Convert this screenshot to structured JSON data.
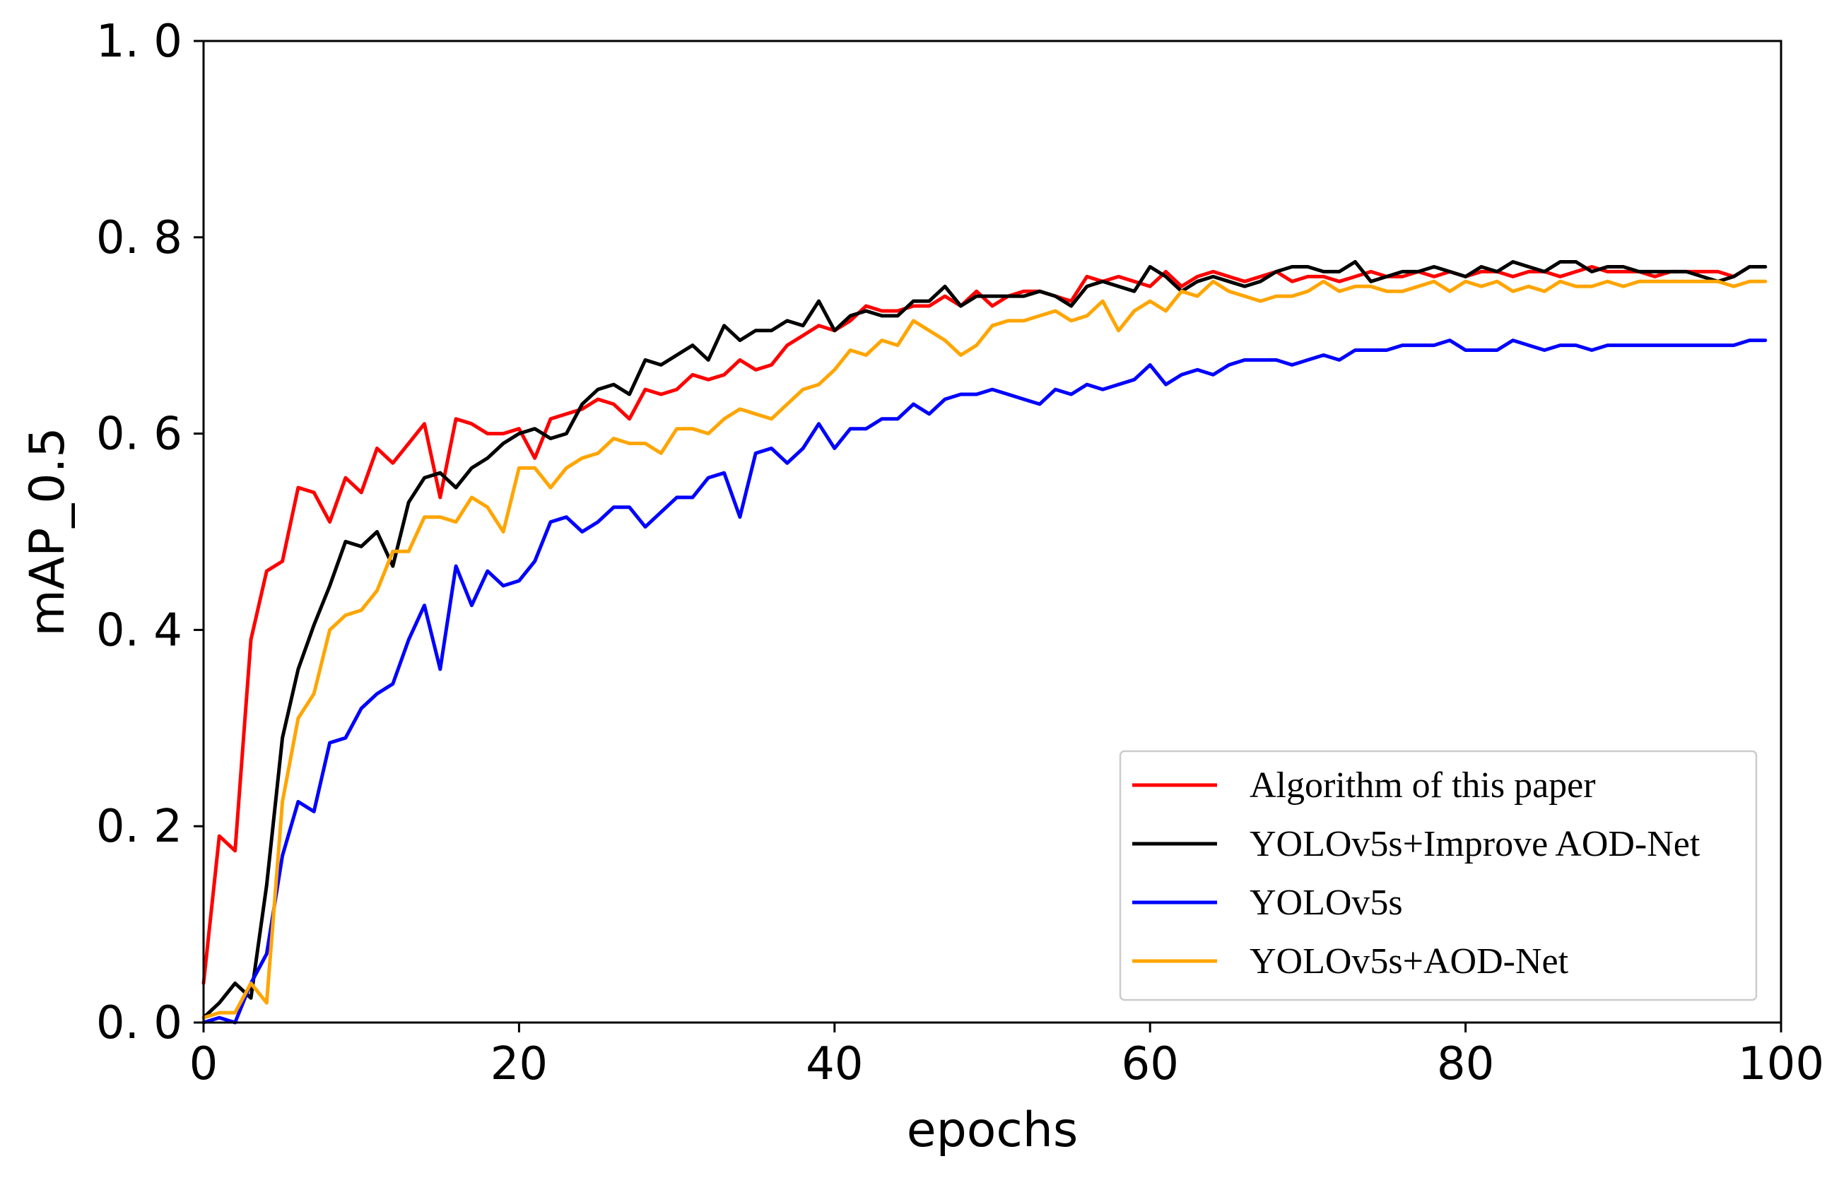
{
  "chart_data": {
    "type": "line",
    "title": "",
    "xlabel": "epochs",
    "ylabel": "mAP_0.5",
    "xlim": [
      0,
      100
    ],
    "ylim": [
      0.0,
      1.0
    ],
    "xticks": [
      0,
      20,
      40,
      60,
      80,
      100
    ],
    "yticks": [
      0.0,
      0.2,
      0.4,
      0.6,
      0.8,
      1.0
    ],
    "xtick_labels": [
      "0",
      "20",
      "40",
      "60",
      "80",
      "100"
    ],
    "ytick_labels": [
      "0. 0",
      "0. 2",
      "0. 4",
      "0. 6",
      "0. 8",
      "1. 0"
    ],
    "grid": false,
    "legend_position": "lower-right",
    "series": [
      {
        "name": "Algorithm of this paper",
        "color": "#ff0000",
        "x": [
          0,
          1,
          2,
          3,
          4,
          5,
          6,
          7,
          8,
          9,
          10,
          11,
          12,
          13,
          14,
          15,
          16,
          17,
          18,
          19,
          20,
          21,
          22,
          23,
          24,
          25,
          26,
          27,
          28,
          29,
          30,
          31,
          32,
          33,
          34,
          35,
          36,
          37,
          38,
          39,
          40,
          41,
          42,
          43,
          44,
          45,
          46,
          47,
          48,
          49,
          50,
          51,
          52,
          53,
          54,
          55,
          56,
          57,
          58,
          59,
          60,
          61,
          62,
          63,
          64,
          65,
          66,
          67,
          68,
          69,
          70,
          71,
          72,
          73,
          74,
          75,
          76,
          77,
          78,
          79,
          80,
          81,
          82,
          83,
          84,
          85,
          86,
          87,
          88,
          89,
          90,
          91,
          92,
          93,
          94,
          95,
          96,
          97,
          98,
          99
        ],
        "values": [
          0.04,
          0.19,
          0.175,
          0.39,
          0.46,
          0.47,
          0.545,
          0.54,
          0.51,
          0.555,
          0.54,
          0.585,
          0.57,
          0.59,
          0.61,
          0.535,
          0.615,
          0.61,
          0.6,
          0.6,
          0.605,
          0.575,
          0.615,
          0.62,
          0.625,
          0.635,
          0.63,
          0.615,
          0.645,
          0.64,
          0.645,
          0.66,
          0.655,
          0.66,
          0.675,
          0.665,
          0.67,
          0.69,
          0.7,
          0.71,
          0.705,
          0.715,
          0.73,
          0.725,
          0.725,
          0.73,
          0.73,
          0.74,
          0.73,
          0.745,
          0.73,
          0.74,
          0.745,
          0.745,
          0.74,
          0.735,
          0.76,
          0.755,
          0.76,
          0.755,
          0.75,
          0.765,
          0.75,
          0.76,
          0.765,
          0.76,
          0.755,
          0.76,
          0.765,
          0.755,
          0.76,
          0.76,
          0.755,
          0.76,
          0.765,
          0.76,
          0.76,
          0.765,
          0.76,
          0.765,
          0.76,
          0.765,
          0.765,
          0.76,
          0.765,
          0.765,
          0.76,
          0.765,
          0.77,
          0.765,
          0.765,
          0.765,
          0.76,
          0.765,
          0.765,
          0.765,
          0.765,
          0.76,
          0.77,
          0.77
        ]
      },
      {
        "name": "YOLOv5s+Improve AOD-Net",
        "color": "#000000",
        "x": [
          0,
          1,
          2,
          3,
          4,
          5,
          6,
          7,
          8,
          9,
          10,
          11,
          12,
          13,
          14,
          15,
          16,
          17,
          18,
          19,
          20,
          21,
          22,
          23,
          24,
          25,
          26,
          27,
          28,
          29,
          30,
          31,
          32,
          33,
          34,
          35,
          36,
          37,
          38,
          39,
          40,
          41,
          42,
          43,
          44,
          45,
          46,
          47,
          48,
          49,
          50,
          51,
          52,
          53,
          54,
          55,
          56,
          57,
          58,
          59,
          60,
          61,
          62,
          63,
          64,
          65,
          66,
          67,
          68,
          69,
          70,
          71,
          72,
          73,
          74,
          75,
          76,
          77,
          78,
          79,
          80,
          81,
          82,
          83,
          84,
          85,
          86,
          87,
          88,
          89,
          90,
          91,
          92,
          93,
          94,
          95,
          96,
          97,
          98,
          99
        ],
        "values": [
          0.005,
          0.02,
          0.04,
          0.025,
          0.14,
          0.29,
          0.36,
          0.405,
          0.445,
          0.49,
          0.485,
          0.5,
          0.465,
          0.53,
          0.555,
          0.56,
          0.545,
          0.565,
          0.575,
          0.59,
          0.6,
          0.605,
          0.595,
          0.6,
          0.63,
          0.645,
          0.65,
          0.64,
          0.675,
          0.67,
          0.68,
          0.69,
          0.675,
          0.71,
          0.695,
          0.705,
          0.705,
          0.715,
          0.71,
          0.735,
          0.705,
          0.72,
          0.725,
          0.72,
          0.72,
          0.735,
          0.735,
          0.75,
          0.73,
          0.74,
          0.74,
          0.74,
          0.74,
          0.745,
          0.74,
          0.73,
          0.75,
          0.755,
          0.75,
          0.745,
          0.77,
          0.76,
          0.745,
          0.755,
          0.76,
          0.755,
          0.75,
          0.755,
          0.765,
          0.77,
          0.77,
          0.765,
          0.765,
          0.775,
          0.755,
          0.76,
          0.765,
          0.765,
          0.77,
          0.765,
          0.76,
          0.77,
          0.765,
          0.775,
          0.77,
          0.765,
          0.775,
          0.775,
          0.765,
          0.77,
          0.77,
          0.765,
          0.765,
          0.765,
          0.765,
          0.76,
          0.755,
          0.76,
          0.77,
          0.77
        ]
      },
      {
        "name": "YOLOv5s",
        "color": "#0000ff",
        "x": [
          0,
          1,
          2,
          3,
          4,
          5,
          6,
          7,
          8,
          9,
          10,
          11,
          12,
          13,
          14,
          15,
          16,
          17,
          18,
          19,
          20,
          21,
          22,
          23,
          24,
          25,
          26,
          27,
          28,
          29,
          30,
          31,
          32,
          33,
          34,
          35,
          36,
          37,
          38,
          39,
          40,
          41,
          42,
          43,
          44,
          45,
          46,
          47,
          48,
          49,
          50,
          51,
          52,
          53,
          54,
          55,
          56,
          57,
          58,
          59,
          60,
          61,
          62,
          63,
          64,
          65,
          66,
          67,
          68,
          69,
          70,
          71,
          72,
          73,
          74,
          75,
          76,
          77,
          78,
          79,
          80,
          81,
          82,
          83,
          84,
          85,
          86,
          87,
          88,
          89,
          90,
          91,
          92,
          93,
          94,
          95,
          96,
          97,
          98,
          99
        ],
        "values": [
          0.0,
          0.005,
          0.0,
          0.04,
          0.07,
          0.17,
          0.225,
          0.215,
          0.285,
          0.29,
          0.32,
          0.335,
          0.345,
          0.39,
          0.425,
          0.36,
          0.465,
          0.425,
          0.46,
          0.445,
          0.45,
          0.47,
          0.51,
          0.515,
          0.5,
          0.51,
          0.525,
          0.525,
          0.505,
          0.52,
          0.535,
          0.535,
          0.555,
          0.56,
          0.515,
          0.58,
          0.585,
          0.57,
          0.585,
          0.61,
          0.585,
          0.605,
          0.605,
          0.615,
          0.615,
          0.63,
          0.62,
          0.635,
          0.64,
          0.64,
          0.645,
          0.64,
          0.635,
          0.63,
          0.645,
          0.64,
          0.65,
          0.645,
          0.65,
          0.655,
          0.67,
          0.65,
          0.66,
          0.665,
          0.66,
          0.67,
          0.675,
          0.675,
          0.675,
          0.67,
          0.675,
          0.68,
          0.675,
          0.685,
          0.685,
          0.685,
          0.69,
          0.69,
          0.69,
          0.695,
          0.685,
          0.685,
          0.685,
          0.695,
          0.69,
          0.685,
          0.69,
          0.69,
          0.685,
          0.69,
          0.69,
          0.69,
          0.69,
          0.69,
          0.69,
          0.69,
          0.69,
          0.69,
          0.695,
          0.695
        ]
      },
      {
        "name": "YOLOv5s+AOD-Net",
        "color": "#ffa500",
        "x": [
          0,
          1,
          2,
          3,
          4,
          5,
          6,
          7,
          8,
          9,
          10,
          11,
          12,
          13,
          14,
          15,
          16,
          17,
          18,
          19,
          20,
          21,
          22,
          23,
          24,
          25,
          26,
          27,
          28,
          29,
          30,
          31,
          32,
          33,
          34,
          35,
          36,
          37,
          38,
          39,
          40,
          41,
          42,
          43,
          44,
          45,
          46,
          47,
          48,
          49,
          50,
          51,
          52,
          53,
          54,
          55,
          56,
          57,
          58,
          59,
          60,
          61,
          62,
          63,
          64,
          65,
          66,
          67,
          68,
          69,
          70,
          71,
          72,
          73,
          74,
          75,
          76,
          77,
          78,
          79,
          80,
          81,
          82,
          83,
          84,
          85,
          86,
          87,
          88,
          89,
          90,
          91,
          92,
          93,
          94,
          95,
          96,
          97,
          98,
          99
        ],
        "values": [
          0.005,
          0.01,
          0.01,
          0.04,
          0.02,
          0.225,
          0.31,
          0.335,
          0.4,
          0.415,
          0.42,
          0.44,
          0.48,
          0.48,
          0.515,
          0.515,
          0.51,
          0.535,
          0.525,
          0.5,
          0.565,
          0.565,
          0.545,
          0.565,
          0.575,
          0.58,
          0.595,
          0.59,
          0.59,
          0.58,
          0.605,
          0.605,
          0.6,
          0.615,
          0.625,
          0.62,
          0.615,
          0.63,
          0.645,
          0.65,
          0.665,
          0.685,
          0.68,
          0.695,
          0.69,
          0.715,
          0.705,
          0.695,
          0.68,
          0.69,
          0.71,
          0.715,
          0.715,
          0.72,
          0.725,
          0.715,
          0.72,
          0.735,
          0.705,
          0.725,
          0.735,
          0.725,
          0.745,
          0.74,
          0.755,
          0.745,
          0.74,
          0.735,
          0.74,
          0.74,
          0.745,
          0.755,
          0.745,
          0.75,
          0.75,
          0.745,
          0.745,
          0.75,
          0.755,
          0.745,
          0.755,
          0.75,
          0.755,
          0.745,
          0.75,
          0.745,
          0.755,
          0.75,
          0.75,
          0.755,
          0.75,
          0.755,
          0.755,
          0.755,
          0.755,
          0.755,
          0.755,
          0.75,
          0.755,
          0.755
        ]
      }
    ]
  }
}
